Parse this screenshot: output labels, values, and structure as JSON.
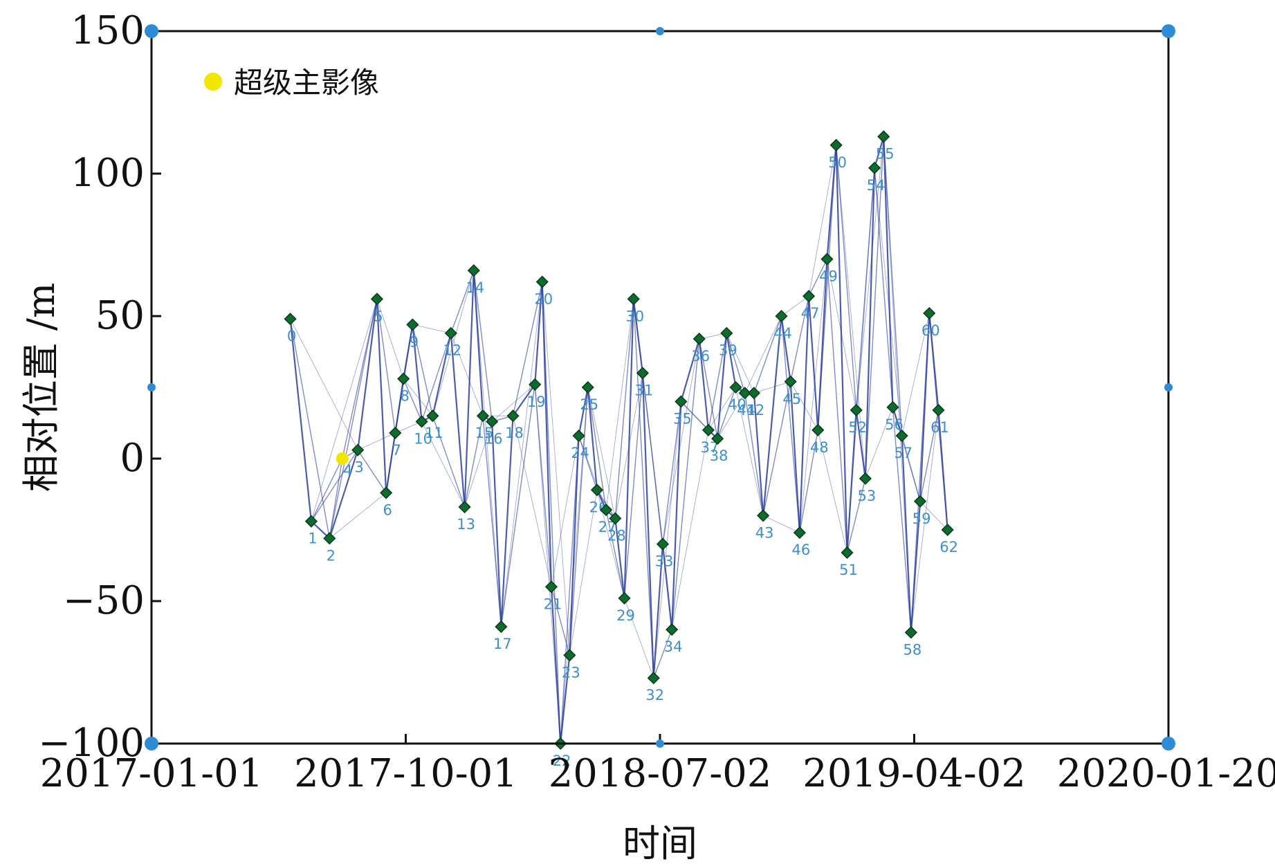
{
  "chart_data": {
    "type": "scatter",
    "title": "",
    "xlabel": "时间",
    "ylabel": "相对位置 /m",
    "xlim": [
      "2017-01-01",
      "2020-01-20"
    ],
    "ylim": [
      -100,
      150
    ],
    "x_ticks": [
      "2017-01-01",
      "2017-10-01",
      "2018-07-02",
      "2019-04-02",
      "2020-01-20"
    ],
    "y_ticks": [
      "150",
      "100",
      "50",
      "0",
      "−50",
      "−100"
    ],
    "grid": false,
    "legend_position": "top-left",
    "colors": {
      "edge": "#2b3f9e",
      "point": "#0d6b2e",
      "point_edge": "#063a17",
      "label": "#3a8fd0",
      "super_master": "#f2e500"
    },
    "super_master": {
      "name": "超级主影像",
      "date": "2017-07-29",
      "value": 0,
      "label": "4"
    },
    "series": [
      {
        "points": [
          {
            "label": "0",
            "date": "2017-06-02",
            "value": 49
          },
          {
            "label": "1",
            "date": "2017-06-25",
            "value": -22
          },
          {
            "label": "2",
            "date": "2017-07-15",
            "value": -28
          },
          {
            "label": "3",
            "date": "2017-08-15",
            "value": 3
          },
          {
            "label": "5",
            "date": "2017-09-05",
            "value": 56
          },
          {
            "label": "6",
            "date": "2017-09-15",
            "value": -12
          },
          {
            "label": "7",
            "date": "2017-09-25",
            "value": 9
          },
          {
            "label": "8",
            "date": "2017-10-04",
            "value": 28
          },
          {
            "label": "9",
            "date": "2017-10-14",
            "value": 47
          },
          {
            "label": "10",
            "date": "2017-10-24",
            "value": 13
          },
          {
            "label": "11",
            "date": "2017-11-05",
            "value": 15
          },
          {
            "label": "12",
            "date": "2017-11-25",
            "value": 44
          },
          {
            "label": "13",
            "date": "2017-12-10",
            "value": -17
          },
          {
            "label": "14",
            "date": "2017-12-20",
            "value": 66
          },
          {
            "label": "15",
            "date": "2017-12-30",
            "value": 15
          },
          {
            "label": "16",
            "date": "2018-01-09",
            "value": 13
          },
          {
            "label": "17",
            "date": "2018-01-19",
            "value": -59
          },
          {
            "label": "18",
            "date": "2018-02-01",
            "value": 15
          },
          {
            "label": "19",
            "date": "2018-02-25",
            "value": 26
          },
          {
            "label": "20",
            "date": "2018-03-05",
            "value": 62
          },
          {
            "label": "21",
            "date": "2018-03-15",
            "value": -45
          },
          {
            "label": "22",
            "date": "2018-03-25",
            "value": -100
          },
          {
            "label": "23",
            "date": "2018-04-04",
            "value": -69
          },
          {
            "label": "24",
            "date": "2018-04-14",
            "value": 8
          },
          {
            "label": "25",
            "date": "2018-04-24",
            "value": 25
          },
          {
            "label": "26",
            "date": "2018-05-04",
            "value": -11
          },
          {
            "label": "27",
            "date": "2018-05-14",
            "value": -18
          },
          {
            "label": "28",
            "date": "2018-05-24",
            "value": -21
          },
          {
            "label": "29",
            "date": "2018-06-03",
            "value": -49
          },
          {
            "label": "30",
            "date": "2018-06-13",
            "value": 56
          },
          {
            "label": "31",
            "date": "2018-06-23",
            "value": 30
          },
          {
            "label": "32",
            "date": "2018-07-05",
            "value": -77
          },
          {
            "label": "33",
            "date": "2018-07-15",
            "value": -30
          },
          {
            "label": "34",
            "date": "2018-07-25",
            "value": -60
          },
          {
            "label": "35",
            "date": "2018-08-04",
            "value": 20
          },
          {
            "label": "36",
            "date": "2018-08-24",
            "value": 42
          },
          {
            "label": "37",
            "date": "2018-09-03",
            "value": 10
          },
          {
            "label": "38",
            "date": "2018-09-13",
            "value": 7
          },
          {
            "label": "39",
            "date": "2018-09-23",
            "value": 44
          },
          {
            "label": "40",
            "date": "2018-10-03",
            "value": 25
          },
          {
            "label": "41",
            "date": "2018-10-13",
            "value": 23
          },
          {
            "label": "42",
            "date": "2018-10-23",
            "value": 23
          },
          {
            "label": "43",
            "date": "2018-11-02",
            "value": -20
          },
          {
            "label": "44",
            "date": "2018-11-22",
            "value": 50
          },
          {
            "label": "45",
            "date": "2018-12-02",
            "value": 27
          },
          {
            "label": "46",
            "date": "2018-12-12",
            "value": -26
          },
          {
            "label": "47",
            "date": "2018-12-22",
            "value": 57
          },
          {
            "label": "48",
            "date": "2019-01-01",
            "value": 10
          },
          {
            "label": "49",
            "date": "2019-01-11",
            "value": 70
          },
          {
            "label": "50",
            "date": "2019-01-21",
            "value": 110
          },
          {
            "label": "51",
            "date": "2019-02-02",
            "value": -33
          },
          {
            "label": "52",
            "date": "2019-02-12",
            "value": 17
          },
          {
            "label": "53",
            "date": "2019-02-22",
            "value": -7
          },
          {
            "label": "54",
            "date": "2019-03-04",
            "value": 102
          },
          {
            "label": "55",
            "date": "2019-03-14",
            "value": 113
          },
          {
            "label": "56",
            "date": "2019-03-24",
            "value": 18
          },
          {
            "label": "57",
            "date": "2019-04-03",
            "value": 8
          },
          {
            "label": "58",
            "date": "2019-04-13",
            "value": -61
          },
          {
            "label": "59",
            "date": "2019-04-23",
            "value": -15
          },
          {
            "label": "60",
            "date": "2019-05-03",
            "value": 51
          },
          {
            "label": "61",
            "date": "2019-05-13",
            "value": 17
          },
          {
            "label": "62",
            "date": "2019-05-23",
            "value": -25
          }
        ]
      }
    ]
  }
}
